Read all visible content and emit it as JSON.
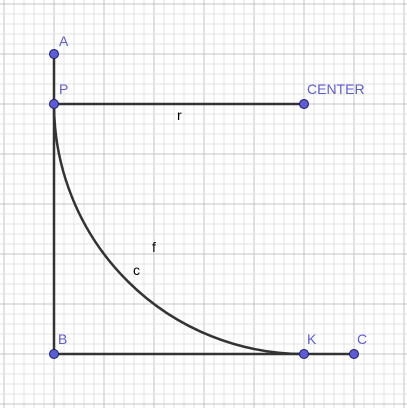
{
  "colors": {
    "background": "#ffffff",
    "grid_minor": "#e3e3e3",
    "grid_major": "#c4c4c4",
    "segment": "#333333",
    "point_fill": "#5c5cd6",
    "point_stroke": "#1a1a66",
    "point_label": "#5c5cd6",
    "object_label": "#000000"
  },
  "points": {
    "A": {
      "label": "A"
    },
    "P": {
      "label": "P"
    },
    "CENTER": {
      "label": "CENTER"
    },
    "B": {
      "label": "B"
    },
    "K": {
      "label": "K"
    },
    "C": {
      "label": "C"
    }
  },
  "objects": {
    "segment_r": {
      "label": "r"
    },
    "arc_c": {
      "label": "c"
    },
    "label_f": {
      "label": "f"
    }
  }
}
